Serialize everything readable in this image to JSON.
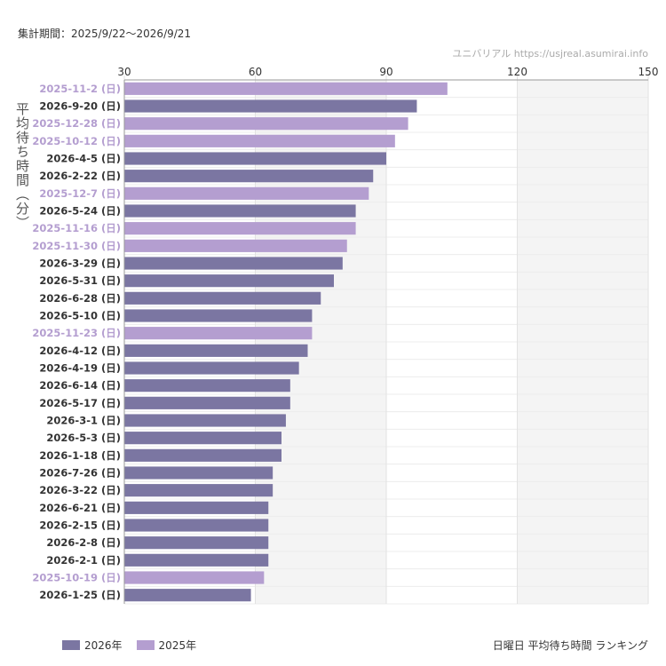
{
  "header": {
    "period_label": "集計期間：2025/9/22〜2026/9/21",
    "source_label": "ユニバリアル https://usjreal.asumirai.info"
  },
  "footer": {
    "caption": "日曜日 平均待ち時間 ランキング"
  },
  "colors": {
    "2026年": "#7b76a2",
    "2025年": "#b49ed0",
    "shade": "#f4f4f4",
    "grid": "#e2e2e2"
  },
  "chart_data": {
    "type": "bar",
    "orientation": "horizontal",
    "ylabel": "平均待ち時間（分）",
    "xlim": [
      30,
      150
    ],
    "xticks": [
      30,
      60,
      90,
      120,
      150
    ],
    "shaded_ranges": [
      [
        60,
        90
      ],
      [
        120,
        150
      ]
    ],
    "grid": true,
    "legend_position": "bottom-left",
    "legend": [
      "2026年",
      "2025年"
    ],
    "categories": [
      "2025-11-2 (日)",
      "2026-9-20 (日)",
      "2025-12-28 (日)",
      "2025-10-12 (日)",
      "2026-4-5 (日)",
      "2026-2-22 (日)",
      "2025-12-7 (日)",
      "2026-5-24 (日)",
      "2025-11-16 (日)",
      "2025-11-30 (日)",
      "2026-3-29 (日)",
      "2026-5-31 (日)",
      "2026-6-28 (日)",
      "2026-5-10 (日)",
      "2025-11-23 (日)",
      "2026-4-12 (日)",
      "2026-4-19 (日)",
      "2026-6-14 (日)",
      "2026-5-17 (日)",
      "2026-3-1 (日)",
      "2026-5-3 (日)",
      "2026-1-18 (日)",
      "2026-7-26 (日)",
      "2026-3-22 (日)",
      "2026-6-21 (日)",
      "2026-2-15 (日)",
      "2026-2-8 (日)",
      "2026-2-1 (日)",
      "2025-10-19 (日)",
      "2026-1-25 (日)"
    ],
    "values": [
      104,
      97,
      95,
      92,
      90,
      87,
      86,
      83,
      83,
      81,
      80,
      78,
      75,
      73,
      73,
      72,
      70,
      68,
      68,
      67,
      66,
      66,
      64,
      64,
      63,
      63,
      63,
      63,
      62,
      59
    ],
    "year_group": [
      "2025年",
      "2026年",
      "2025年",
      "2025年",
      "2026年",
      "2026年",
      "2025年",
      "2026年",
      "2025年",
      "2025年",
      "2026年",
      "2026年",
      "2026年",
      "2026年",
      "2025年",
      "2026年",
      "2026年",
      "2026年",
      "2026年",
      "2026年",
      "2026年",
      "2026年",
      "2026年",
      "2026年",
      "2026年",
      "2026年",
      "2026年",
      "2026年",
      "2025年",
      "2026年"
    ]
  }
}
